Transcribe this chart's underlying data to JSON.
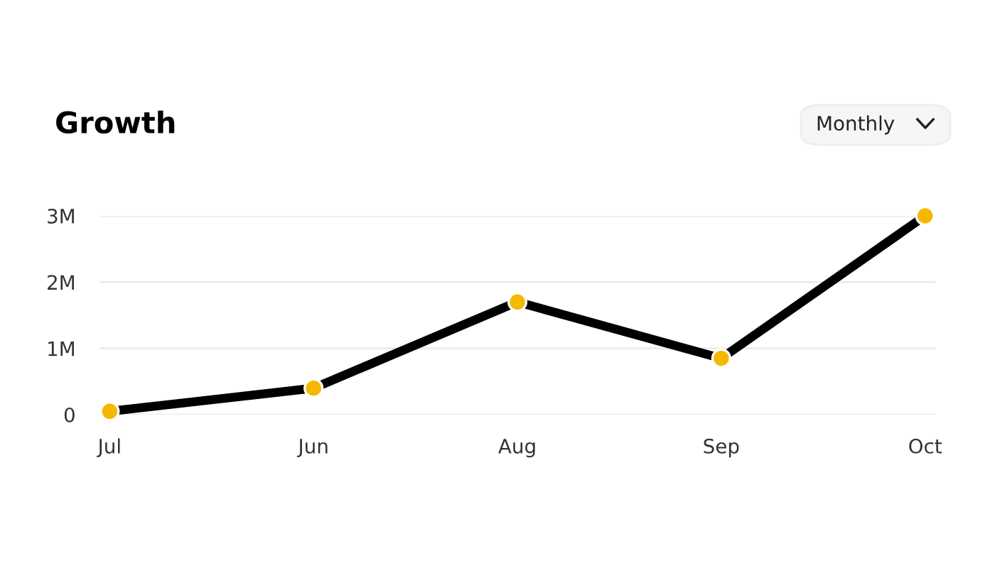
{
  "chart_data": {
    "type": "line",
    "title": "Growth",
    "annotations": [
      "Monthly"
    ],
    "categories": [
      "Jul",
      "Jun",
      "Aug",
      "Sep",
      "Oct"
    ],
    "series": [
      {
        "color": "#000000",
        "values": [
          50000,
          400000,
          1700000,
          850000,
          3000000
        ]
      },
      {
        "type": "scatter",
        "marker": "circle",
        "color": "#f5b800",
        "values": [
          50000,
          400000,
          1700000,
          850000,
          3000000
        ]
      }
    ],
    "line_style": "solid",
    "ylim": [
      0,
      3000000
    ],
    "yticks": [
      {
        "value": 0,
        "label": "0"
      },
      {
        "value": 1000000,
        "label": "1M"
      },
      {
        "value": 2000000,
        "label": "2M"
      },
      {
        "value": 3000000,
        "label": "3M"
      }
    ],
    "grid": "y",
    "legend": false
  }
}
